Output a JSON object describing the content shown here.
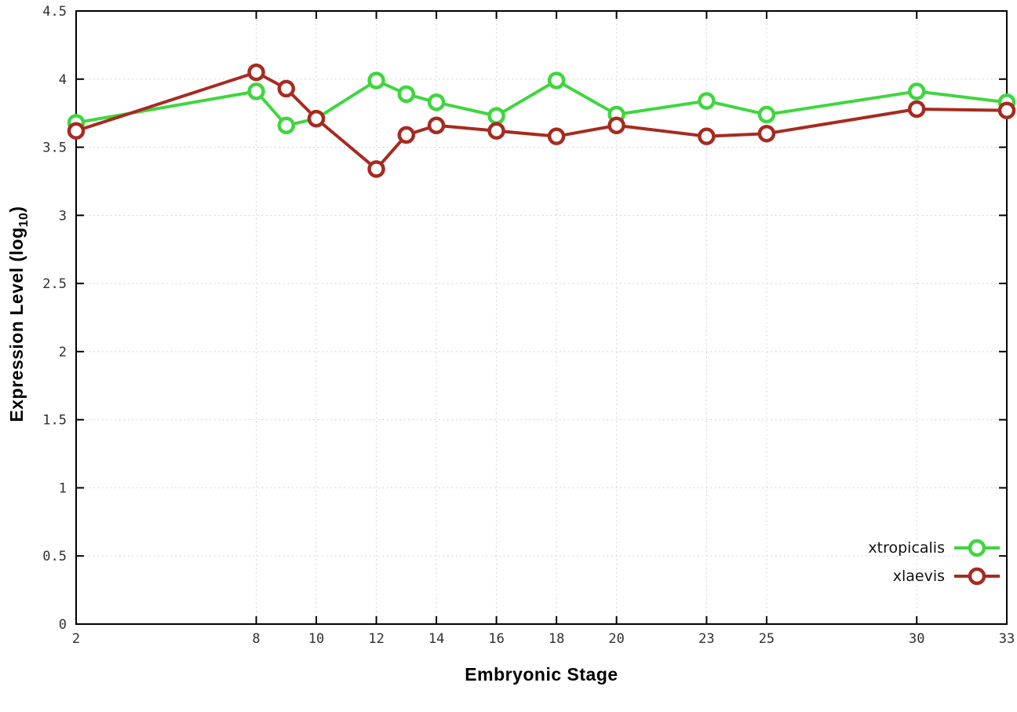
{
  "labels": {
    "ylabel_prefix": "Expression Level (log",
    "ylabel_sub": "10",
    "ylabel_suffix": ")"
  },
  "chart_data": {
    "type": "line",
    "title": "",
    "xlabel": "Embryonic Stage",
    "ylabel": "Expression Level (log10)",
    "xlim": [
      2,
      33
    ],
    "ylim": [
      0,
      4.5
    ],
    "x_ticks": [
      2,
      8,
      10,
      12,
      14,
      16,
      18,
      20,
      23,
      25,
      30,
      33
    ],
    "y_ticks": [
      0,
      0.5,
      1,
      1.5,
      2,
      2.5,
      3,
      3.5,
      4,
      4.5
    ],
    "grid": true,
    "legend_position": "bottom-right",
    "x": [
      2,
      8,
      9,
      10,
      12,
      13,
      14,
      16,
      18,
      20,
      23,
      25,
      30,
      33
    ],
    "series": [
      {
        "name": "xtropicalis",
        "color": "#3fd63f",
        "values": [
          3.68,
          3.91,
          3.66,
          3.71,
          3.99,
          3.89,
          3.83,
          3.73,
          3.99,
          3.74,
          3.84,
          3.74,
          3.91,
          3.83
        ]
      },
      {
        "name": "xlaevis",
        "color": "#a62b21",
        "values": [
          3.62,
          4.05,
          3.93,
          3.71,
          3.34,
          3.59,
          3.66,
          3.62,
          3.58,
          3.66,
          3.58,
          3.6,
          3.78,
          3.77
        ]
      }
    ],
    "style": {
      "grid_color": "#c8c8c8",
      "axis_color": "#000000",
      "tick_label_color": "#303030",
      "line_width": 4,
      "marker_radius": 9,
      "marker_stroke": 4.5
    }
  }
}
